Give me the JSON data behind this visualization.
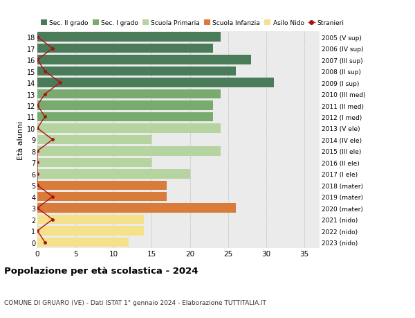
{
  "ages": [
    18,
    17,
    16,
    15,
    14,
    13,
    12,
    11,
    10,
    9,
    8,
    7,
    6,
    5,
    4,
    3,
    2,
    1,
    0
  ],
  "right_labels": [
    "2005 (V sup)",
    "2006 (IV sup)",
    "2007 (III sup)",
    "2008 (II sup)",
    "2009 (I sup)",
    "2010 (III med)",
    "2011 (II med)",
    "2012 (I med)",
    "2013 (V ele)",
    "2014 (IV ele)",
    "2015 (III ele)",
    "2016 (II ele)",
    "2017 (I ele)",
    "2018 (mater)",
    "2019 (mater)",
    "2020 (mater)",
    "2021 (nido)",
    "2022 (nido)",
    "2023 (nido)"
  ],
  "bar_values": [
    24,
    23,
    28,
    26,
    31,
    24,
    23,
    23,
    24,
    15,
    24,
    15,
    20,
    17,
    17,
    26,
    14,
    14,
    12
  ],
  "bar_colors": [
    "#4a7c59",
    "#4a7c59",
    "#4a7c59",
    "#4a7c59",
    "#4a7c59",
    "#7aab6e",
    "#7aab6e",
    "#7aab6e",
    "#b5d4a0",
    "#b5d4a0",
    "#b5d4a0",
    "#b5d4a0",
    "#b5d4a0",
    "#d97b3a",
    "#d97b3a",
    "#d97b3a",
    "#f5e18a",
    "#f5e18a",
    "#f5e18a"
  ],
  "stranieri_values": [
    0,
    2,
    0,
    1,
    3,
    1,
    0,
    1,
    0,
    2,
    0,
    0,
    0,
    0,
    2,
    0,
    2,
    0,
    1
  ],
  "legend_labels": [
    "Sec. II grado",
    "Sec. I grado",
    "Scuola Primaria",
    "Scuola Infanzia",
    "Asilo Nido",
    "Stranieri"
  ],
  "legend_colors": [
    "#4a7c59",
    "#7aab6e",
    "#b5d4a0",
    "#d97b3a",
    "#f5e18a",
    "#aa1111"
  ],
  "title": "Popolazione per età scolastica - 2024",
  "subtitle": "COMUNE DI GRUARO (VE) - Dati ISTAT 1° gennaio 2024 - Elaborazione TUTTITALIA.IT",
  "ylabel_left": "Età alunni",
  "xlim": [
    0,
    37
  ],
  "bar_background": "#ebebeb"
}
